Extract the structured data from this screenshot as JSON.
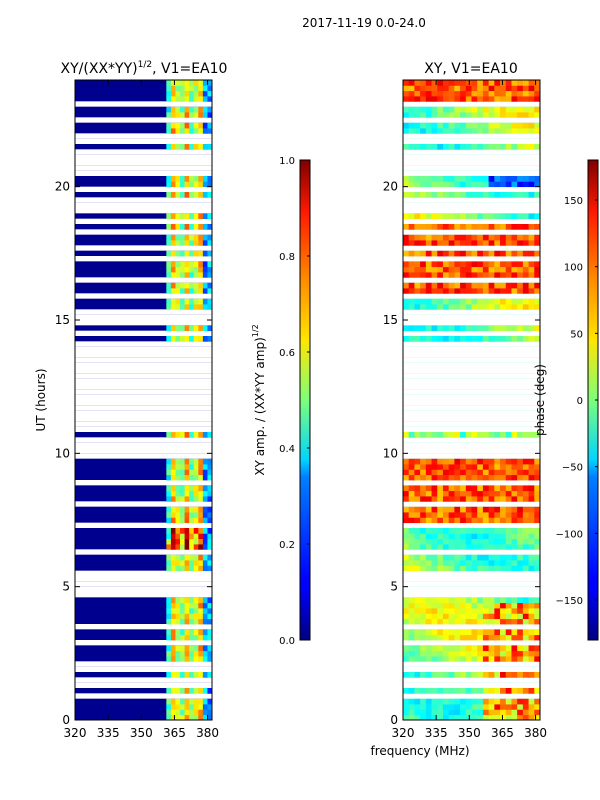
{
  "chart_data": {
    "suptitle": "2017-11-19 0.0-24.0",
    "shared_xlabel": "frequency (MHz)",
    "panels": [
      {
        "type": "heatmap",
        "title_main": "XY/(XX*YY)",
        "title_sup": "1/2",
        "title_tail": ", V1=EA10",
        "ylabel": "UT (hours)",
        "xlim": [
          320,
          382
        ],
        "ylim": [
          0,
          24
        ],
        "xticks": [
          320,
          335,
          350,
          365,
          380
        ],
        "yticks": [
          0,
          5,
          10,
          15,
          20
        ],
        "colormap": "jet",
        "colorbar": {
          "label_main": "XY amp. / (XX*YY amp)",
          "label_sup": "1/2",
          "range": [
            0.0,
            1.0
          ],
          "ticks": [
            "0.0",
            "0.2",
            "0.4",
            "0.6",
            "0.8",
            "1.0"
          ]
        }
      },
      {
        "type": "heatmap",
        "title_main": "XY, V1=EA10",
        "ylabel": "",
        "xlim": [
          320,
          382
        ],
        "ylim": [
          0,
          24
        ],
        "xticks": [
          320,
          335,
          350,
          365,
          380
        ],
        "yticks": [
          0,
          5,
          10,
          15,
          20
        ],
        "colormap": "jet",
        "colorbar": {
          "label_main": "phase (deg)",
          "range": [
            -180,
            180
          ],
          "ticks": [
            "−150",
            "−100",
            "−50",
            "0",
            "50",
            "100",
            "150"
          ]
        }
      }
    ],
    "flagged_hours": [
      0.95,
      1.3,
      1.45,
      1.9,
      2.05,
      2.4,
      2.85,
      3.5,
      4.75,
      5.0,
      5.15,
      5.3,
      5.45,
      6.25,
      7.35,
      8.05,
      8.85,
      10.0,
      10.35,
      10.55,
      10.9,
      11.05,
      11.3,
      11.6,
      11.85,
      12.05,
      12.25,
      12.45,
      12.65,
      12.85,
      13.05,
      13.3,
      13.55,
      13.75,
      13.9,
      14.05,
      14.55,
      14.85,
      15.1,
      15.35,
      15.9,
      16.45,
      17.3,
      17.75,
      18.35,
      18.65,
      19.05,
      19.35,
      19.55,
      19.95,
      20.5,
      20.75,
      20.95,
      21.15,
      21.4,
      21.6,
      21.85,
      22.55,
      23.05
    ]
  }
}
